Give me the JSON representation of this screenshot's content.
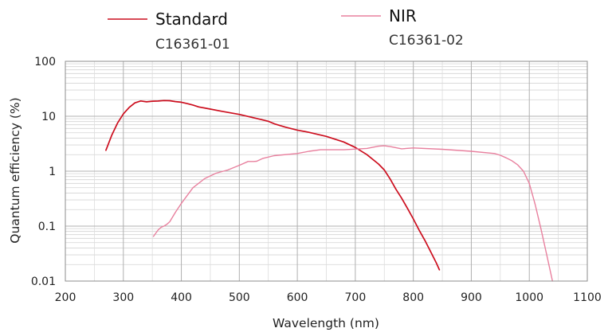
{
  "chart_data": {
    "type": "line",
    "title": "",
    "xlabel": "Wavelength (nm)",
    "ylabel": "Quantum efficiency (%)",
    "xscale": "linear",
    "yscale": "log",
    "xlim": [
      200,
      1100
    ],
    "ylim": [
      0.01,
      100
    ],
    "grid": true,
    "legend_position": "top",
    "x_ticks": [
      "200",
      "300",
      "400",
      "500",
      "600",
      "700",
      "800",
      "900",
      "1000",
      "1100"
    ],
    "y_ticks": [
      "0.01",
      "0.1",
      "1",
      "10",
      "100"
    ],
    "series": [
      {
        "name": "Standard",
        "model": "C16361-01",
        "color": "#cc0e1e",
        "x": [
          270,
          280,
          290,
          300,
          310,
          320,
          330,
          340,
          350,
          360,
          370,
          380,
          390,
          400,
          410,
          420,
          430,
          450,
          470,
          500,
          530,
          550,
          560,
          580,
          600,
          620,
          650,
          680,
          700,
          720,
          740,
          750,
          760,
          770,
          780,
          790,
          800,
          810,
          820,
          830,
          840,
          845
        ],
        "y": [
          2.4,
          4.5,
          7.5,
          11,
          14.5,
          17.5,
          19,
          18.3,
          18.8,
          18.9,
          19.3,
          19.2,
          18.5,
          18,
          17,
          16,
          14.8,
          13.5,
          12.3,
          10.8,
          9.1,
          8.1,
          7.3,
          6.3,
          5.6,
          5.1,
          4.3,
          3.4,
          2.7,
          2,
          1.35,
          1.05,
          0.72,
          0.47,
          0.32,
          0.21,
          0.135,
          0.085,
          0.055,
          0.034,
          0.021,
          0.016
        ]
      },
      {
        "name": "NIR",
        "model": "C16361-02",
        "color": "#e8809e",
        "x": [
          352,
          360,
          365,
          370,
          375,
          380,
          390,
          400,
          420,
          440,
          460,
          480,
          500,
          515,
          525,
          530,
          540,
          560,
          600,
          620,
          640,
          680,
          720,
          740,
          750,
          760,
          780,
          800,
          850,
          900,
          940,
          950,
          960,
          970,
          980,
          990,
          1000,
          1010,
          1020,
          1030,
          1040
        ],
        "y": [
          0.065,
          0.085,
          0.095,
          0.1,
          0.108,
          0.12,
          0.18,
          0.26,
          0.5,
          0.73,
          0.92,
          1.05,
          1.28,
          1.5,
          1.5,
          1.52,
          1.7,
          1.92,
          2.1,
          2.3,
          2.45,
          2.45,
          2.6,
          2.85,
          2.9,
          2.8,
          2.55,
          2.65,
          2.5,
          2.3,
          2.1,
          1.95,
          1.75,
          1.55,
          1.3,
          1.0,
          0.6,
          0.25,
          0.09,
          0.03,
          0.01
        ]
      }
    ]
  }
}
